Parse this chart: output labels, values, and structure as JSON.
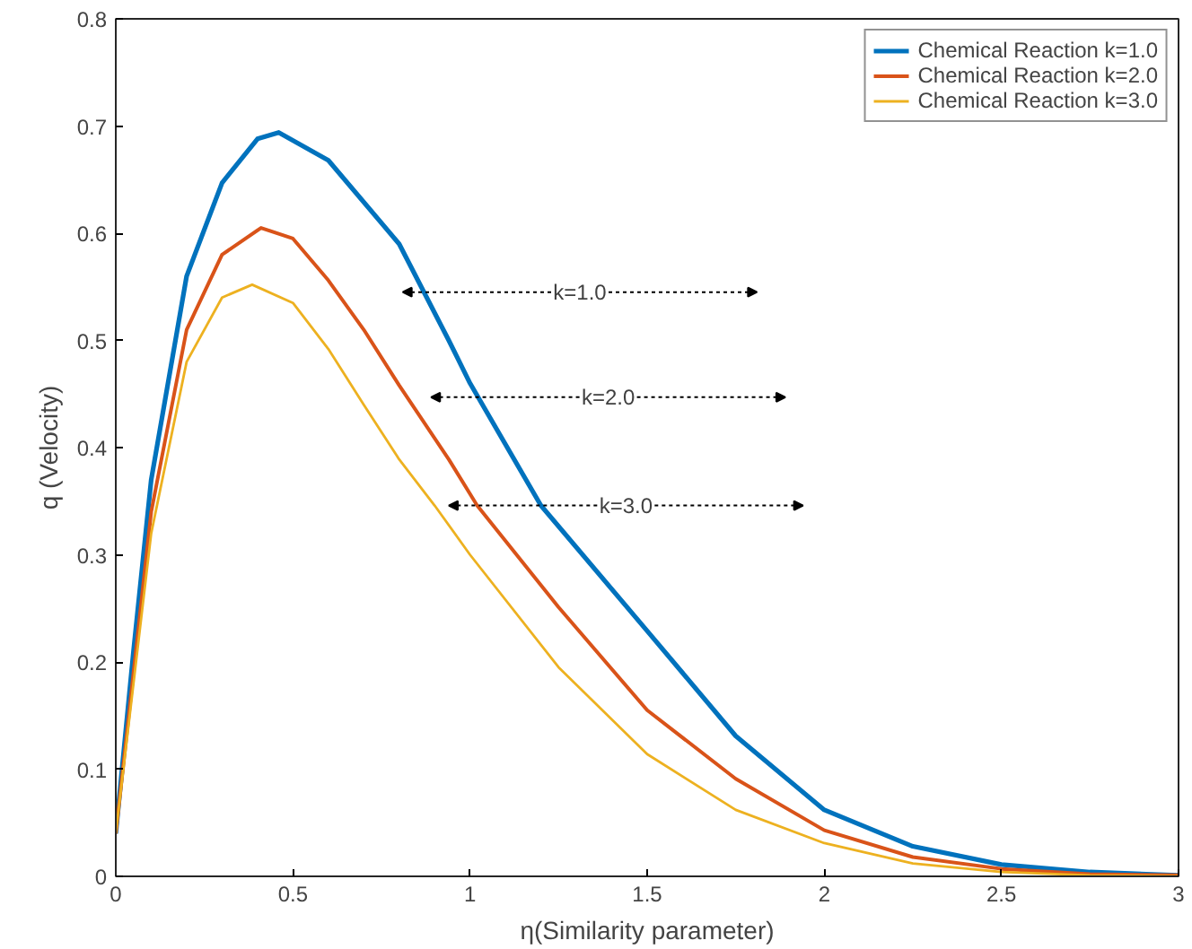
{
  "chart_data": {
    "type": "line",
    "xlabel": "η(Similarity parameter)",
    "ylabel": "q (Velocity)",
    "xlim": [
      0,
      3
    ],
    "ylim": [
      0,
      0.8
    ],
    "xticks": [
      0,
      0.5,
      1,
      1.5,
      2,
      2.5,
      3
    ],
    "yticks": [
      0,
      0.1,
      0.2,
      0.3,
      0.4,
      0.5,
      0.6,
      0.7,
      0.8
    ],
    "grid": false,
    "legend": "top right",
    "line_style": "solid",
    "marker": "none",
    "series": [
      {
        "name": "Chemical Reaction k=1.0",
        "color": "#0072bd",
        "x": [
          0,
          0.05,
          0.1,
          0.2,
          0.3,
          0.4,
          0.46,
          0.6,
          0.8,
          0.94,
          1.0,
          1.2,
          1.5,
          1.75,
          2.0,
          2.25,
          2.5,
          2.75,
          3.0
        ],
        "values": [
          0.04,
          0.21,
          0.37,
          0.56,
          0.647,
          0.688,
          0.694,
          0.668,
          0.59,
          0.5,
          0.46,
          0.346,
          0.229,
          0.131,
          0.062,
          0.028,
          0.011,
          0.004,
          0.001
        ]
      },
      {
        "name": "Chemical Reaction k=2.0",
        "color": "#d95319",
        "x": [
          0,
          0.05,
          0.1,
          0.2,
          0.3,
          0.41,
          0.5,
          0.6,
          0.7,
          0.8,
          0.94,
          1.02,
          1.25,
          1.5,
          1.75,
          2.0,
          2.25,
          2.5,
          2.75,
          3.0
        ],
        "values": [
          0.04,
          0.19,
          0.34,
          0.51,
          0.58,
          0.605,
          0.595,
          0.556,
          0.51,
          0.458,
          0.389,
          0.346,
          0.251,
          0.155,
          0.091,
          0.043,
          0.018,
          0.007,
          0.002,
          0.001
        ]
      },
      {
        "name": "Chemical Reaction k=3.0",
        "color": "#edb120",
        "x": [
          0,
          0.05,
          0.1,
          0.2,
          0.3,
          0.385,
          0.5,
          0.6,
          0.7,
          0.8,
          0.9,
          1.0,
          1.25,
          1.5,
          1.75,
          2.0,
          2.25,
          2.5,
          2.75,
          3.0
        ],
        "values": [
          0.04,
          0.18,
          0.32,
          0.48,
          0.54,
          0.552,
          0.535,
          0.492,
          0.44,
          0.389,
          0.346,
          0.3,
          0.195,
          0.114,
          0.062,
          0.031,
          0.012,
          0.004,
          0.001,
          0
        ]
      }
    ],
    "annotations": [
      {
        "text": "k=1.0",
        "x": 1.31,
        "y": 0.545
      },
      {
        "text": "k=2.0",
        "x": 1.39,
        "y": 0.447
      },
      {
        "text": "k=3.0",
        "x": 1.44,
        "y": 0.346
      }
    ]
  }
}
